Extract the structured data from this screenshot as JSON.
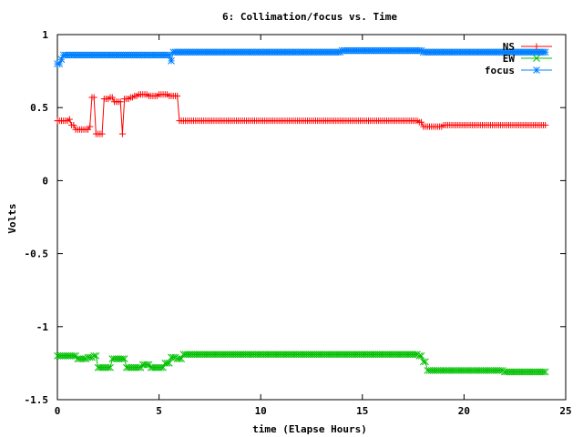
{
  "chart_data": {
    "type": "line",
    "title": "6: Collimation/focus vs. Time",
    "xlabel": "time (Elapse Hours)",
    "ylabel": "Volts",
    "xlim": [
      0,
      25
    ],
    "ylim": [
      -1.5,
      1
    ],
    "x_ticks": [
      0,
      5,
      10,
      15,
      20,
      25
    ],
    "x_tick_labels": [
      "0",
      "5",
      "10",
      "15",
      "20",
      "25"
    ],
    "y_ticks": [
      -1.5,
      -1,
      -0.5,
      0,
      0.5,
      1
    ],
    "y_tick_labels": [
      "-1.5",
      "-1",
      "-0.5",
      "0",
      "0.5",
      "1"
    ],
    "grid": false,
    "legend_position": "top-right",
    "series": [
      {
        "name": "NS",
        "color": "#ff0000",
        "marker": "plus",
        "points": [
          [
            0,
            0.41
          ],
          [
            0.4,
            0.41
          ],
          [
            0.6,
            0.42
          ],
          [
            0.7,
            0.38
          ],
          [
            0.9,
            0.35
          ],
          [
            1.5,
            0.35
          ],
          [
            1.6,
            0.37
          ],
          [
            1.7,
            0.57
          ],
          [
            1.8,
            0.57
          ],
          [
            1.9,
            0.32
          ],
          [
            2.1,
            0.32
          ],
          [
            2.3,
            0.56
          ],
          [
            2.6,
            0.57
          ],
          [
            2.8,
            0.54
          ],
          [
            3.0,
            0.54
          ],
          [
            3.2,
            0.32
          ],
          [
            3.3,
            0.56
          ],
          [
            3.6,
            0.57
          ],
          [
            3.8,
            0.58
          ],
          [
            4.0,
            0.59
          ],
          [
            4.5,
            0.58
          ],
          [
            5.0,
            0.59
          ],
          [
            5.5,
            0.58
          ],
          [
            5.9,
            0.58
          ],
          [
            6.0,
            0.41
          ],
          [
            8,
            0.41
          ],
          [
            10,
            0.41
          ],
          [
            12,
            0.41
          ],
          [
            14,
            0.41
          ],
          [
            16,
            0.41
          ],
          [
            17.5,
            0.41
          ],
          [
            17.8,
            0.4
          ],
          [
            18.0,
            0.37
          ],
          [
            19,
            0.38
          ],
          [
            20,
            0.38
          ],
          [
            21,
            0.38
          ],
          [
            22,
            0.38
          ],
          [
            23,
            0.38
          ],
          [
            24,
            0.38
          ]
        ]
      },
      {
        "name": "EW",
        "color": "#00c000",
        "marker": "x",
        "points": [
          [
            0,
            -1.2
          ],
          [
            0.5,
            -1.2
          ],
          [
            1.0,
            -1.22
          ],
          [
            1.5,
            -1.21
          ],
          [
            1.8,
            -1.2
          ],
          [
            2.0,
            -1.28
          ],
          [
            2.4,
            -1.28
          ],
          [
            2.7,
            -1.22
          ],
          [
            3.0,
            -1.22
          ],
          [
            3.4,
            -1.28
          ],
          [
            3.8,
            -1.28
          ],
          [
            4.2,
            -1.26
          ],
          [
            4.6,
            -1.28
          ],
          [
            5.0,
            -1.28
          ],
          [
            5.3,
            -1.25
          ],
          [
            5.6,
            -1.21
          ],
          [
            5.9,
            -1.22
          ],
          [
            6.2,
            -1.19
          ],
          [
            8,
            -1.19
          ],
          [
            10,
            -1.19
          ],
          [
            12,
            -1.19
          ],
          [
            14,
            -1.19
          ],
          [
            16,
            -1.19
          ],
          [
            17.5,
            -1.19
          ],
          [
            17.8,
            -1.2
          ],
          [
            18.0,
            -1.24
          ],
          [
            18.2,
            -1.3
          ],
          [
            20,
            -1.3
          ],
          [
            22,
            -1.31
          ],
          [
            24,
            -1.31
          ]
        ]
      },
      {
        "name": "focus",
        "color": "#0080ff",
        "marker": "star",
        "points": [
          [
            0,
            0.8
          ],
          [
            0.1,
            0.8
          ],
          [
            0.2,
            0.83
          ],
          [
            0.3,
            0.86
          ],
          [
            2,
            0.86
          ],
          [
            4,
            0.86
          ],
          [
            5.5,
            0.86
          ],
          [
            5.6,
            0.82
          ],
          [
            5.7,
            0.88
          ],
          [
            8,
            0.88
          ],
          [
            10,
            0.88
          ],
          [
            12,
            0.88
          ],
          [
            14,
            0.89
          ],
          [
            16,
            0.89
          ],
          [
            17.5,
            0.89
          ],
          [
            18,
            0.88
          ],
          [
            20,
            0.88
          ],
          [
            22,
            0.88
          ],
          [
            24,
            0.88
          ]
        ]
      }
    ]
  }
}
